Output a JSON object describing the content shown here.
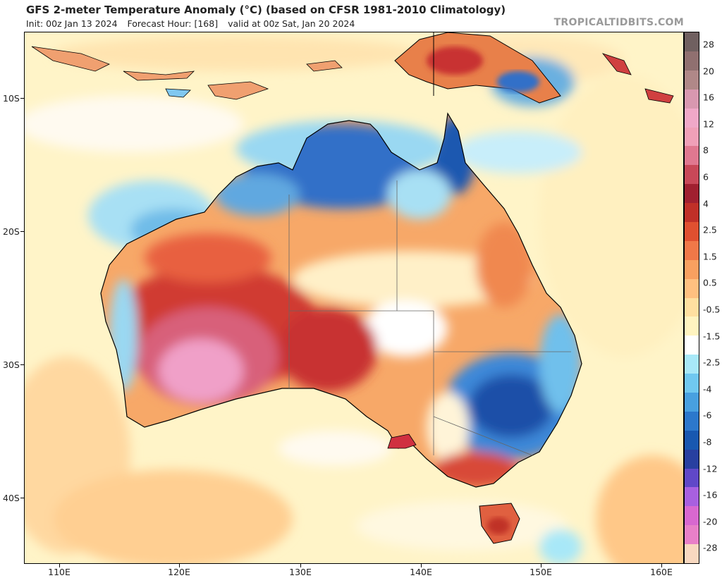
{
  "header": {
    "title": "GFS 2-meter Temperature Anomaly (°C) (based on CFSR 1981-2010 Climatology)",
    "init": "Init: 00z Jan 13 2024",
    "forecast_hour": "Forecast Hour: [168]",
    "valid": "valid at 00z Sat, Jan 20 2024",
    "credit": "TROPICALTIDBITS.COM"
  },
  "map": {
    "lat_labels": [
      "10S",
      "20S",
      "30S",
      "40S"
    ],
    "lon_labels": [
      "110E",
      "120E",
      "130E",
      "140E",
      "150E",
      "160E"
    ]
  },
  "colorbar": {
    "labels": [
      "28",
      "20",
      "16",
      "12",
      "8",
      "6",
      "4",
      "2.5",
      "1.5",
      "0.5",
      "-0.5",
      "-1.5",
      "-2.5",
      "-4",
      "-6",
      "-8",
      "-12",
      "-16",
      "-20",
      "-28"
    ],
    "colors": [
      "#f8d8c0",
      "#e880c8",
      "#d868d0",
      "#a860e0",
      "#6048c8",
      "#2840a0",
      "#1858b0",
      "#2c78cc",
      "#48a0e0",
      "#70c8f0",
      "#a8e8f8",
      "#ffffff",
      "#fff4c0",
      "#ffe0a0",
      "#ffc080",
      "#f8a060",
      "#f07848",
      "#e05030",
      "#c03028",
      "#a02030",
      "#c84858",
      "#e07890",
      "#f0a0b8",
      "#f0a8c8",
      "#d898b0",
      "#b08888",
      "#907070",
      "#706060"
    ]
  }
}
